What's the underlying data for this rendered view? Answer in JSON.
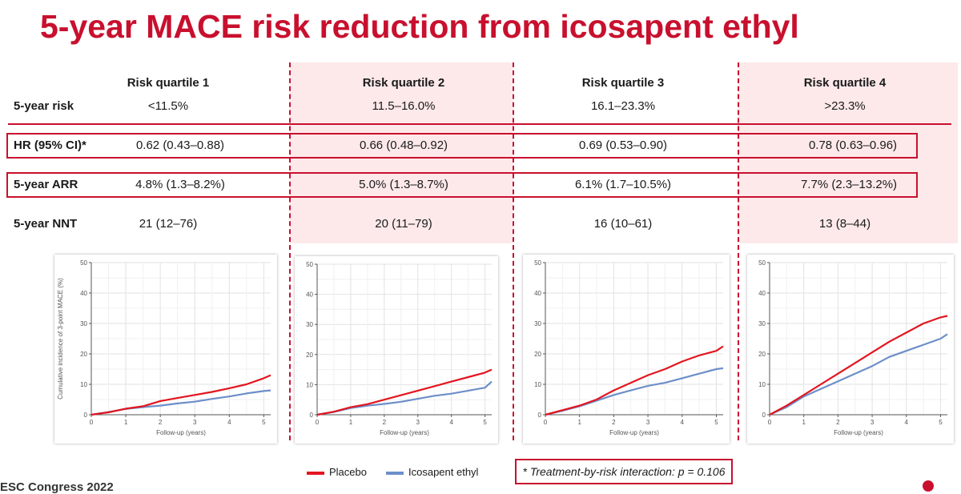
{
  "title": "5-year MACE risk reduction from icosapent ethyl",
  "table": {
    "row_labels": {
      "risk": "5-year risk",
      "hr": "HR (95% CI)*",
      "arr": "5-year ARR",
      "nnt": "5-year NNT"
    },
    "quartiles": [
      {
        "header": "Risk quartile 1",
        "risk": "<11.5%",
        "hr": "0.62 (0.43–0.88)",
        "arr": "4.8% (1.3–8.2%)",
        "nnt": "21 (12–76)"
      },
      {
        "header": "Risk quartile 2",
        "risk": "11.5–16.0%",
        "hr": "0.66 (0.48–0.92)",
        "arr": "5.0% (1.3–8.7%)",
        "nnt": "20 (11–79)"
      },
      {
        "header": "Risk quartile 3",
        "risk": "16.1–23.3%",
        "hr": "0.69 (0.53–0.90)",
        "arr": "6.1% (1.7–10.5%)",
        "nnt": "16 (10–61)"
      },
      {
        "header": "Risk quartile 4",
        "risk": ">23.3%",
        "hr": "0.78 (0.63–0.96)",
        "arr": "7.7% (2.3–13.2%)",
        "nnt": "13 (8–44)"
      }
    ]
  },
  "legend": {
    "placebo": "Placebo",
    "icosapent": "Icosapent ethyl"
  },
  "interaction_note": "* Treatment-by-risk interaction:  p = 0.106",
  "footer_text": "ESC Congress 2022",
  "colors": {
    "accent": "#c8102e",
    "shade": "#fde9ea",
    "placebo": "#e3151f",
    "icosapent": "#6d8fc9"
  },
  "chart_data": [
    {
      "type": "line",
      "title": "",
      "xlabel": "Follow-up (years)",
      "ylabel": "Cumulative incidence of 3-point MACE (%)",
      "xlim": [
        0,
        5.2
      ],
      "ylim": [
        0,
        50
      ],
      "xticks": [
        "0",
        "1",
        "2",
        "3",
        "4",
        "5"
      ],
      "yticks": [
        "0",
        "10",
        "20",
        "30",
        "40",
        "50"
      ],
      "grid": true,
      "series": [
        {
          "name": "Placebo",
          "x": [
            0,
            0.5,
            1,
            1.5,
            2,
            2.5,
            3,
            3.5,
            4,
            4.5,
            5,
            5.2
          ],
          "y": [
            0,
            0.8,
            2,
            2.8,
            4.5,
            5.5,
            6.5,
            7.5,
            8.7,
            10,
            12,
            13
          ]
        },
        {
          "name": "Icosapent ethyl",
          "x": [
            0,
            0.5,
            1,
            1.5,
            2,
            2.5,
            3,
            3.5,
            4,
            4.5,
            5,
            5.2
          ],
          "y": [
            0,
            0.9,
            1.9,
            2.5,
            3,
            3.7,
            4.3,
            5.2,
            6,
            7,
            7.8,
            8
          ]
        }
      ]
    },
    {
      "type": "line",
      "title": "",
      "xlabel": "Follow-up (years)",
      "ylabel": "",
      "xlim": [
        0,
        5.2
      ],
      "ylim": [
        0,
        50
      ],
      "xticks": [
        "0",
        "1",
        "2",
        "3",
        "4",
        "5"
      ],
      "yticks": [
        "0",
        "10",
        "20",
        "30",
        "40",
        "50"
      ],
      "grid": true,
      "series": [
        {
          "name": "Placebo",
          "x": [
            0,
            0.5,
            1,
            1.5,
            2,
            2.5,
            3,
            3.5,
            4,
            4.5,
            5,
            5.2
          ],
          "y": [
            0,
            1,
            2.5,
            3.5,
            5,
            6.5,
            8,
            9.5,
            11,
            12.5,
            14,
            15
          ]
        },
        {
          "name": "Icosapent ethyl",
          "x": [
            0,
            0.5,
            1,
            1.5,
            2,
            2.5,
            3,
            3.5,
            4,
            4.5,
            5,
            5.2
          ],
          "y": [
            0,
            0.9,
            2.2,
            3,
            3.6,
            4.3,
            5.3,
            6.3,
            7,
            8,
            9,
            11
          ]
        }
      ]
    },
    {
      "type": "line",
      "title": "",
      "xlabel": "Follow-up (years)",
      "ylabel": "",
      "xlim": [
        0,
        5.2
      ],
      "ylim": [
        0,
        50
      ],
      "xticks": [
        "0",
        "1",
        "2",
        "3",
        "4",
        "5"
      ],
      "yticks": [
        "0",
        "10",
        "20",
        "30",
        "40",
        "50"
      ],
      "grid": true,
      "series": [
        {
          "name": "Placebo",
          "x": [
            0,
            0.5,
            1,
            1.5,
            2,
            2.5,
            3,
            3.5,
            4,
            4.5,
            5,
            5.2
          ],
          "y": [
            0,
            1.5,
            3,
            5,
            8,
            10.5,
            13,
            15,
            17.5,
            19.5,
            21,
            22.5
          ]
        },
        {
          "name": "Icosapent ethyl",
          "x": [
            0,
            0.5,
            1,
            1.5,
            2,
            2.5,
            3,
            3.5,
            4,
            4.5,
            5,
            5.2
          ],
          "y": [
            0,
            1.3,
            2.8,
            4.6,
            6.5,
            8,
            9.5,
            10.5,
            12,
            13.5,
            15,
            15.3
          ]
        }
      ]
    },
    {
      "type": "line",
      "title": "",
      "xlabel": "Follow-up (years)",
      "ylabel": "",
      "xlim": [
        0,
        5.2
      ],
      "ylim": [
        0,
        50
      ],
      "xticks": [
        "0",
        "1",
        "2",
        "3",
        "4",
        "5"
      ],
      "yticks": [
        "0",
        "10",
        "20",
        "30",
        "40",
        "50"
      ],
      "grid": true,
      "series": [
        {
          "name": "Placebo",
          "x": [
            0,
            0.5,
            1,
            1.5,
            2,
            2.5,
            3,
            3.5,
            4,
            4.5,
            5,
            5.2
          ],
          "y": [
            0,
            3,
            6.5,
            10,
            13.5,
            17,
            20.5,
            24,
            27,
            30,
            32,
            32.5
          ]
        },
        {
          "name": "Icosapent ethyl",
          "x": [
            0,
            0.5,
            1,
            1.5,
            2,
            2.5,
            3,
            3.5,
            4,
            4.5,
            5,
            5.2
          ],
          "y": [
            0,
            2.5,
            6,
            8.5,
            11,
            13.5,
            16,
            19,
            21,
            23,
            25,
            26.5
          ]
        }
      ]
    }
  ]
}
